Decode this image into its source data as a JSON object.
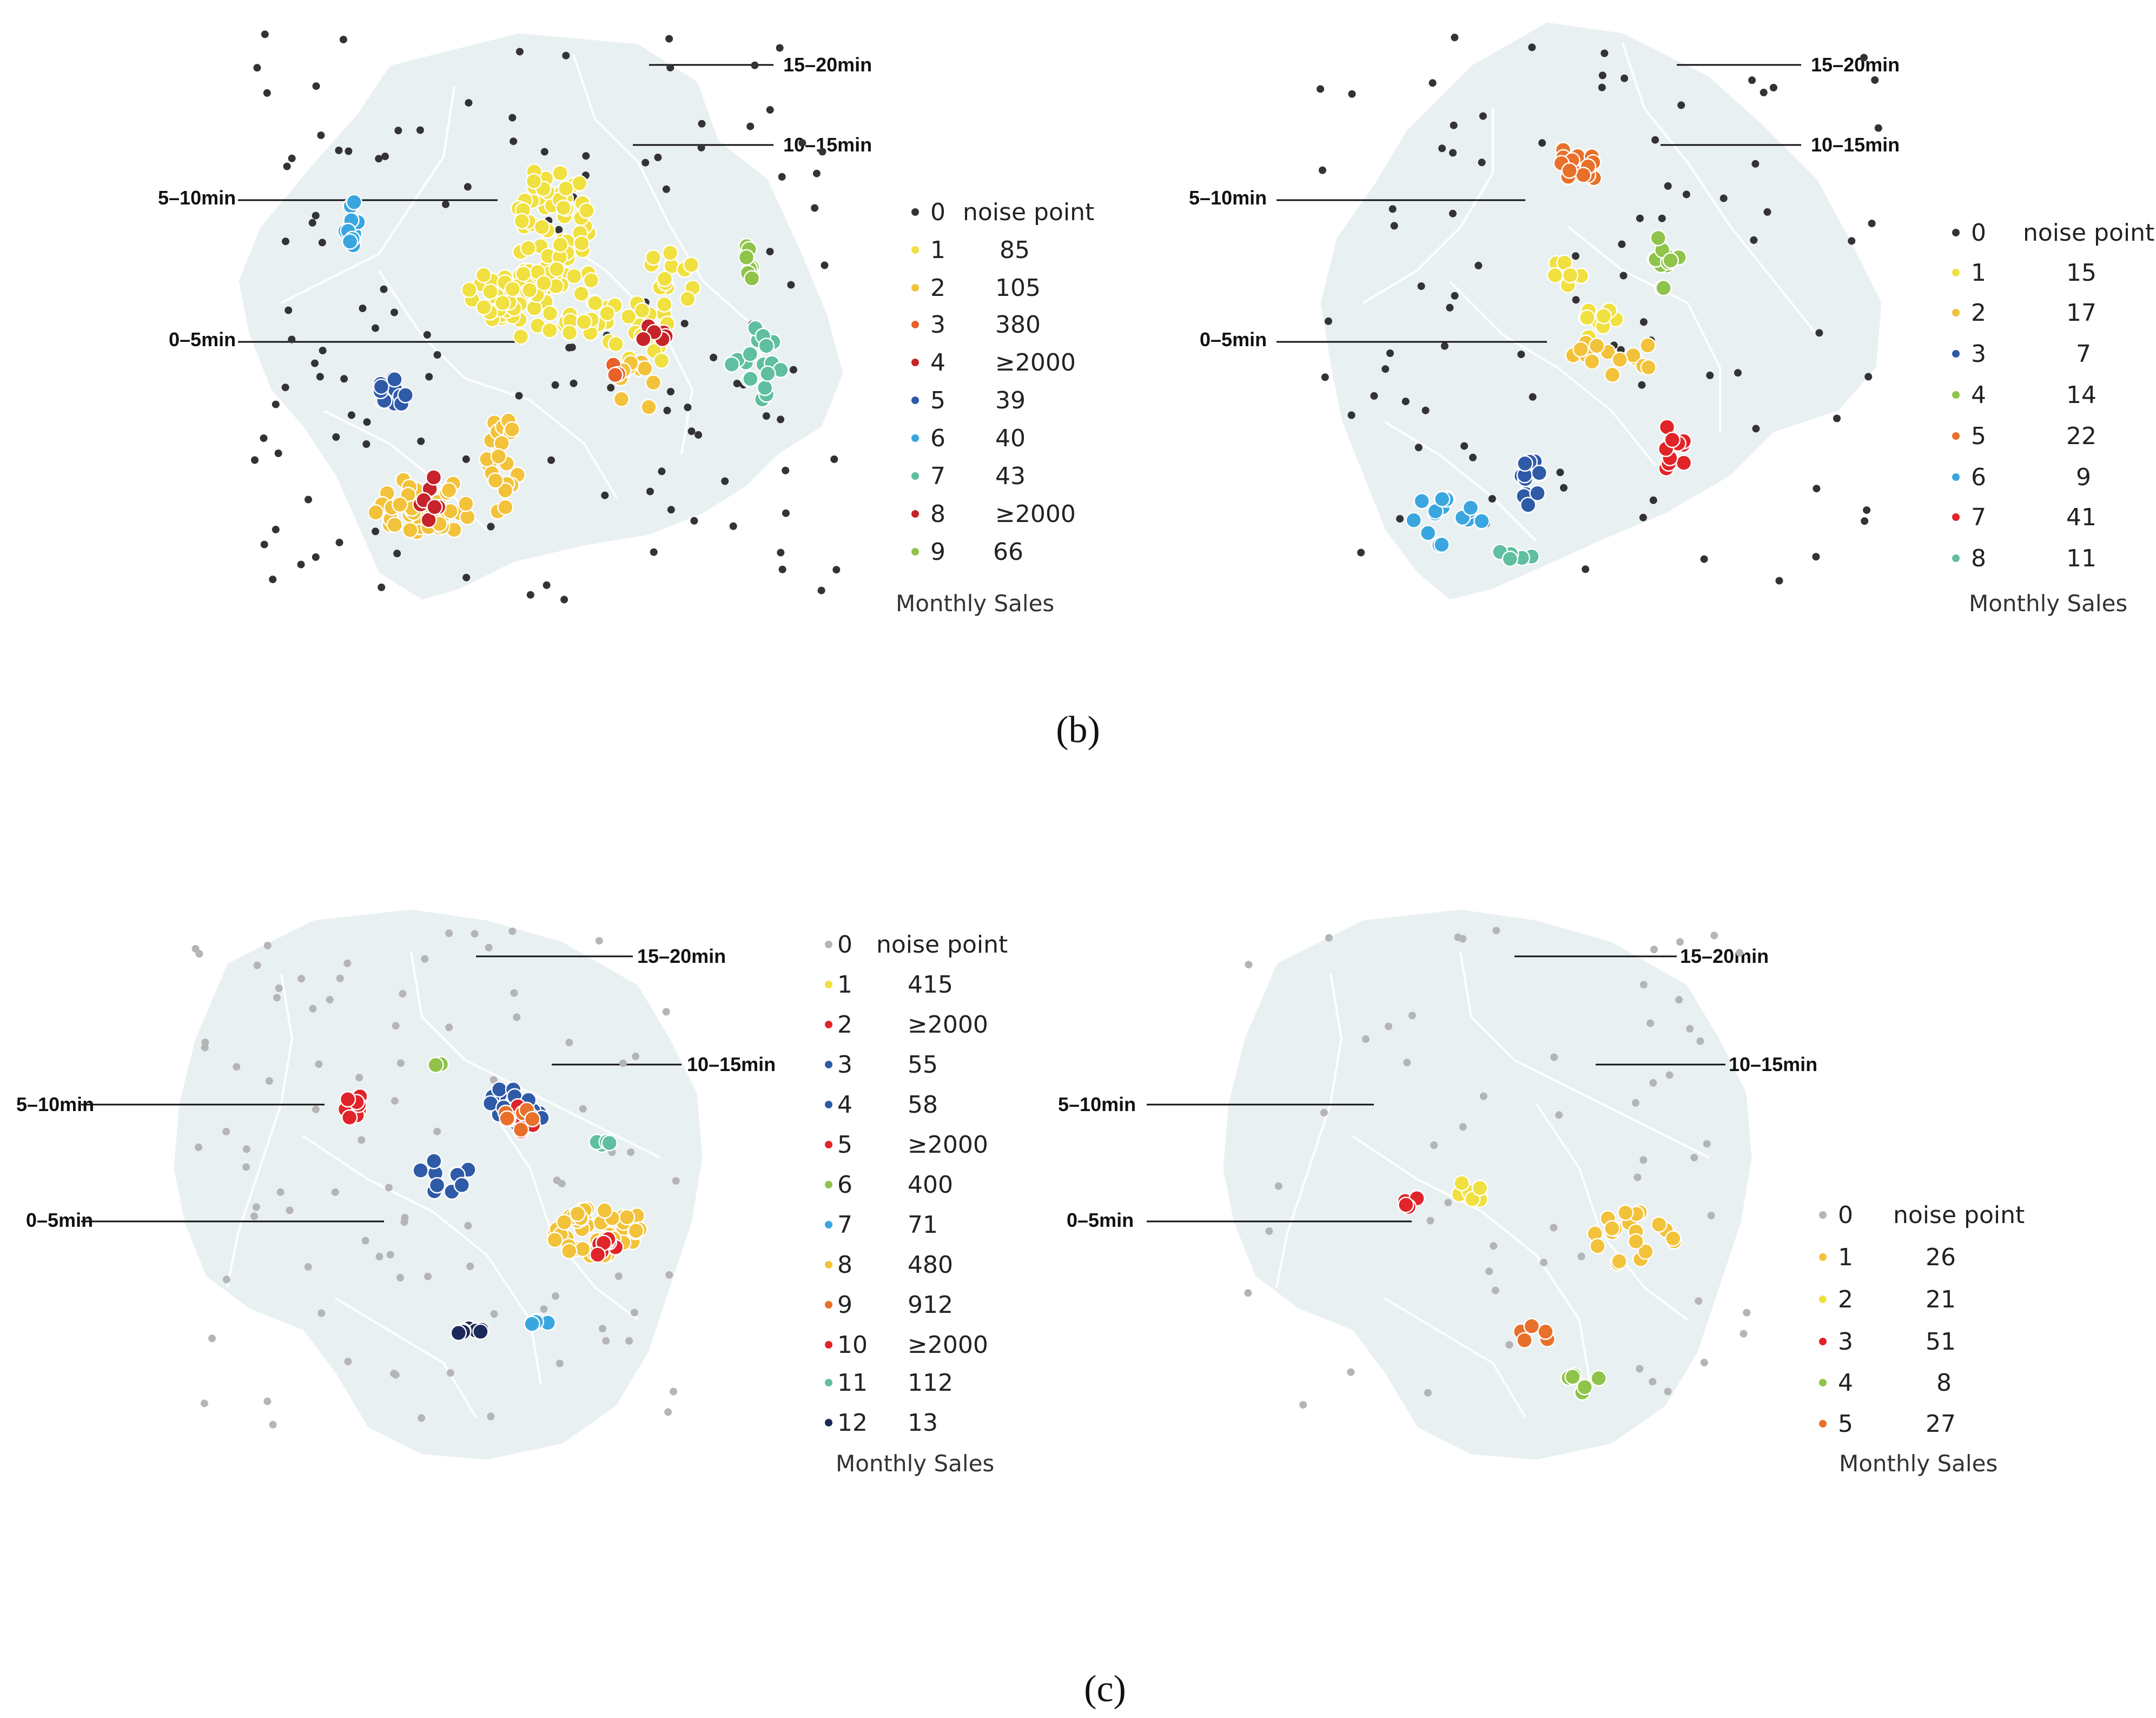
{
  "colors": {
    "region_fill": "#e9f0f2",
    "region_border": "#ffffff",
    "noise": "#333333",
    "noise_light": "#b5b5b5",
    "line": "#111111"
  },
  "captions": [
    "(b)",
    "(c)"
  ],
  "panels": [
    {
      "id": "b-left",
      "time_labels": [
        "15–20min",
        "10–15min",
        "5–10min",
        "0–5min"
      ],
      "legend": {
        "header_label": "noise point",
        "title": "Monthly Sales",
        "items": [
          {
            "id": "0",
            "sales": "noise point",
            "color": "#333333"
          },
          {
            "id": "1",
            "sales": "85",
            "color": "#f0e040"
          },
          {
            "id": "2",
            "sales": "105",
            "color": "#f2c23a"
          },
          {
            "id": "3",
            "sales": "380",
            "color": "#e8602a"
          },
          {
            "id": "4",
            "sales": "≥2000",
            "color": "#c6232a"
          },
          {
            "id": "5",
            "sales": "39",
            "color": "#2e5aa8"
          },
          {
            "id": "6",
            "sales": "40",
            "color": "#3aa6e0"
          },
          {
            "id": "7",
            "sales": "43",
            "color": "#5fbfa0"
          },
          {
            "id": "8",
            "sales": "≥2000",
            "color": "#c6232a"
          },
          {
            "id": "9",
            "sales": "66",
            "color": "#8fc34a"
          }
        ]
      }
    },
    {
      "id": "b-right",
      "time_labels": [
        "15–20min",
        "10–15min",
        "5–10min",
        "0–5min"
      ],
      "legend": {
        "header_label": "noise point",
        "title": "Monthly Sales",
        "items": [
          {
            "id": "0",
            "sales": "noise point",
            "color": "#333333"
          },
          {
            "id": "1",
            "sales": "15",
            "color": "#f0e040"
          },
          {
            "id": "2",
            "sales": "17",
            "color": "#f2c23a"
          },
          {
            "id": "3",
            "sales": "7",
            "color": "#2e5aa8"
          },
          {
            "id": "4",
            "sales": "14",
            "color": "#8fc34a"
          },
          {
            "id": "5",
            "sales": "22",
            "color": "#e8702a"
          },
          {
            "id": "6",
            "sales": "9",
            "color": "#3aa6e0"
          },
          {
            "id": "7",
            "sales": "41",
            "color": "#e0242a"
          },
          {
            "id": "8",
            "sales": "11",
            "color": "#5fbfa0"
          }
        ]
      }
    },
    {
      "id": "c-left",
      "time_labels": [
        "15–20min",
        "10–15min",
        "5–10min",
        "0–5min"
      ],
      "legend": {
        "header_label": "noise point",
        "title": "Monthly Sales",
        "items": [
          {
            "id": "0",
            "sales": "noise point",
            "color": "#b5b5b5"
          },
          {
            "id": "1",
            "sales": "415",
            "color": "#f0e040"
          },
          {
            "id": "2",
            "sales": "≥2000",
            "color": "#e0242a"
          },
          {
            "id": "3",
            "sales": "55",
            "color": "#2e5aa8"
          },
          {
            "id": "4",
            "sales": "58",
            "color": "#2e5aa8"
          },
          {
            "id": "5",
            "sales": "≥2000",
            "color": "#e0242a"
          },
          {
            "id": "6",
            "sales": "400",
            "color": "#8fc34a"
          },
          {
            "id": "7",
            "sales": "71",
            "color": "#3aa6e0"
          },
          {
            "id": "8",
            "sales": "480",
            "color": "#f2c23a"
          },
          {
            "id": "9",
            "sales": "912",
            "color": "#e8702a"
          },
          {
            "id": "10",
            "sales": "≥2000",
            "color": "#e0242a"
          },
          {
            "id": "11",
            "sales": "112",
            "color": "#5fbfa0"
          },
          {
            "id": "12",
            "sales": "13",
            "color": "#1c2a5a"
          }
        ]
      }
    },
    {
      "id": "c-right",
      "time_labels": [
        "15–20min",
        "10–15min",
        "5–10min",
        "0–5min"
      ],
      "legend": {
        "header_label": "noise point",
        "title": "Monthly Sales",
        "items": [
          {
            "id": "0",
            "sales": "noise point",
            "color": "#b5b5b5"
          },
          {
            "id": "1",
            "sales": "26",
            "color": "#f2c23a"
          },
          {
            "id": "2",
            "sales": "21",
            "color": "#f0e040"
          },
          {
            "id": "3",
            "sales": "51",
            "color": "#e0242a"
          },
          {
            "id": "4",
            "sales": "8",
            "color": "#8fc34a"
          },
          {
            "id": "5",
            "sales": "27",
            "color": "#e8702a"
          }
        ]
      }
    }
  ]
}
